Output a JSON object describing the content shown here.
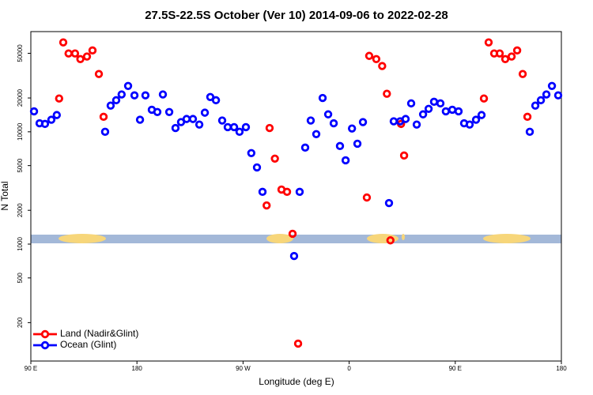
{
  "chart_data": {
    "type": "scatter",
    "title": "27.5S-22.5S October (Ver 10)   2014-09-06 to 2022-02-28",
    "x_label": "Longitude (deg E)",
    "y_label": "N Total",
    "ylog": true,
    "legend": "bottom-left",
    "xlim": [
      90,
      540
    ],
    "xticks": [
      {
        "value": 90,
        "label": "90 E"
      },
      {
        "value": 180,
        "label": "180"
      },
      {
        "value": 270,
        "label": "90 W"
      },
      {
        "value": 360,
        "label": "0"
      },
      {
        "value": 450,
        "label": "90 E"
      },
      {
        "value": 540,
        "label": "180"
      }
    ],
    "ylim": [
      91,
      78000
    ],
    "yticks": [
      200,
      500,
      1000,
      2000,
      5000,
      10000,
      20000,
      50000
    ],
    "series": [
      {
        "name": "Land (Nadir&Glint)",
        "color": "#ff0000",
        "x": [
          114,
          117.5,
          122,
          127.5,
          132,
          137.6,
          142.3,
          147.7,
          151.7,
          290,
          292.5,
          297,
          302.6,
          307.3,
          312,
          316.7,
          375,
          377,
          383,
          388,
          392,
          395,
          404,
          406.6,
          474.3,
          478.3,
          483,
          487.7,
          492.4,
          497.8,
          502.5,
          507.2,
          511.2
        ],
        "values": [
          19800,
          62500,
          49800,
          49800,
          44400,
          46800,
          53000,
          32700,
          13600,
          2210,
          10800,
          5770,
          3060,
          2920,
          1235,
          130,
          2600,
          47400,
          44400,
          38500,
          21800,
          1080,
          11750,
          6150,
          19800,
          62500,
          49800,
          49800,
          44400,
          46800,
          53000,
          32700,
          13600
        ]
      },
      {
        "name": "Ocean (Glint)",
        "color": "#0000ff",
        "x": [
          92.7,
          97.4,
          102,
          107.4,
          112,
          153,
          157.7,
          162.4,
          167,
          172.5,
          177.9,
          182.6,
          187.2,
          192.6,
          197.3,
          202,
          207.4,
          212.7,
          217.4,
          222.1,
          227.5,
          232.9,
          237.6,
          242.2,
          247,
          252.3,
          257,
          262.4,
          267,
          272.4,
          277,
          281.8,
          286.5,
          313.3,
          318,
          322.7,
          327.4,
          332.1,
          337.5,
          342.2,
          346.9,
          352.2,
          357,
          362.4,
          367,
          371.7,
          393.8,
          397.8,
          403.2,
          407.9,
          412.6,
          417.3,
          422.7,
          427.4,
          432,
          437.4,
          442,
          447.5,
          452.8,
          457.5,
          462.2,
          467.6,
          472.3,
          513.2,
          517.9,
          522.6,
          527.3,
          532,
          537.3
        ],
        "values": [
          15200,
          11900,
          11750,
          12800,
          14100,
          10000,
          17100,
          19100,
          21500,
          25600,
          21100,
          12800,
          21100,
          15700,
          15000,
          21500,
          15000,
          10800,
          12200,
          13000,
          13000,
          11600,
          14800,
          20400,
          19100,
          12600,
          11000,
          11000,
          10000,
          11000,
          6460,
          4820,
          2920,
          783,
          2920,
          7230,
          12600,
          9530,
          20000,
          14300,
          11900,
          7470,
          5570,
          10700,
          7830,
          12200,
          2320,
          12400,
          12400,
          13000,
          17900,
          11600,
          14300,
          16000,
          18500,
          17900,
          15200,
          15700,
          15200,
          11900,
          11600,
          12800,
          14100,
          10000,
          17100,
          19100,
          21500,
          25600,
          21100
        ]
      }
    ]
  }
}
